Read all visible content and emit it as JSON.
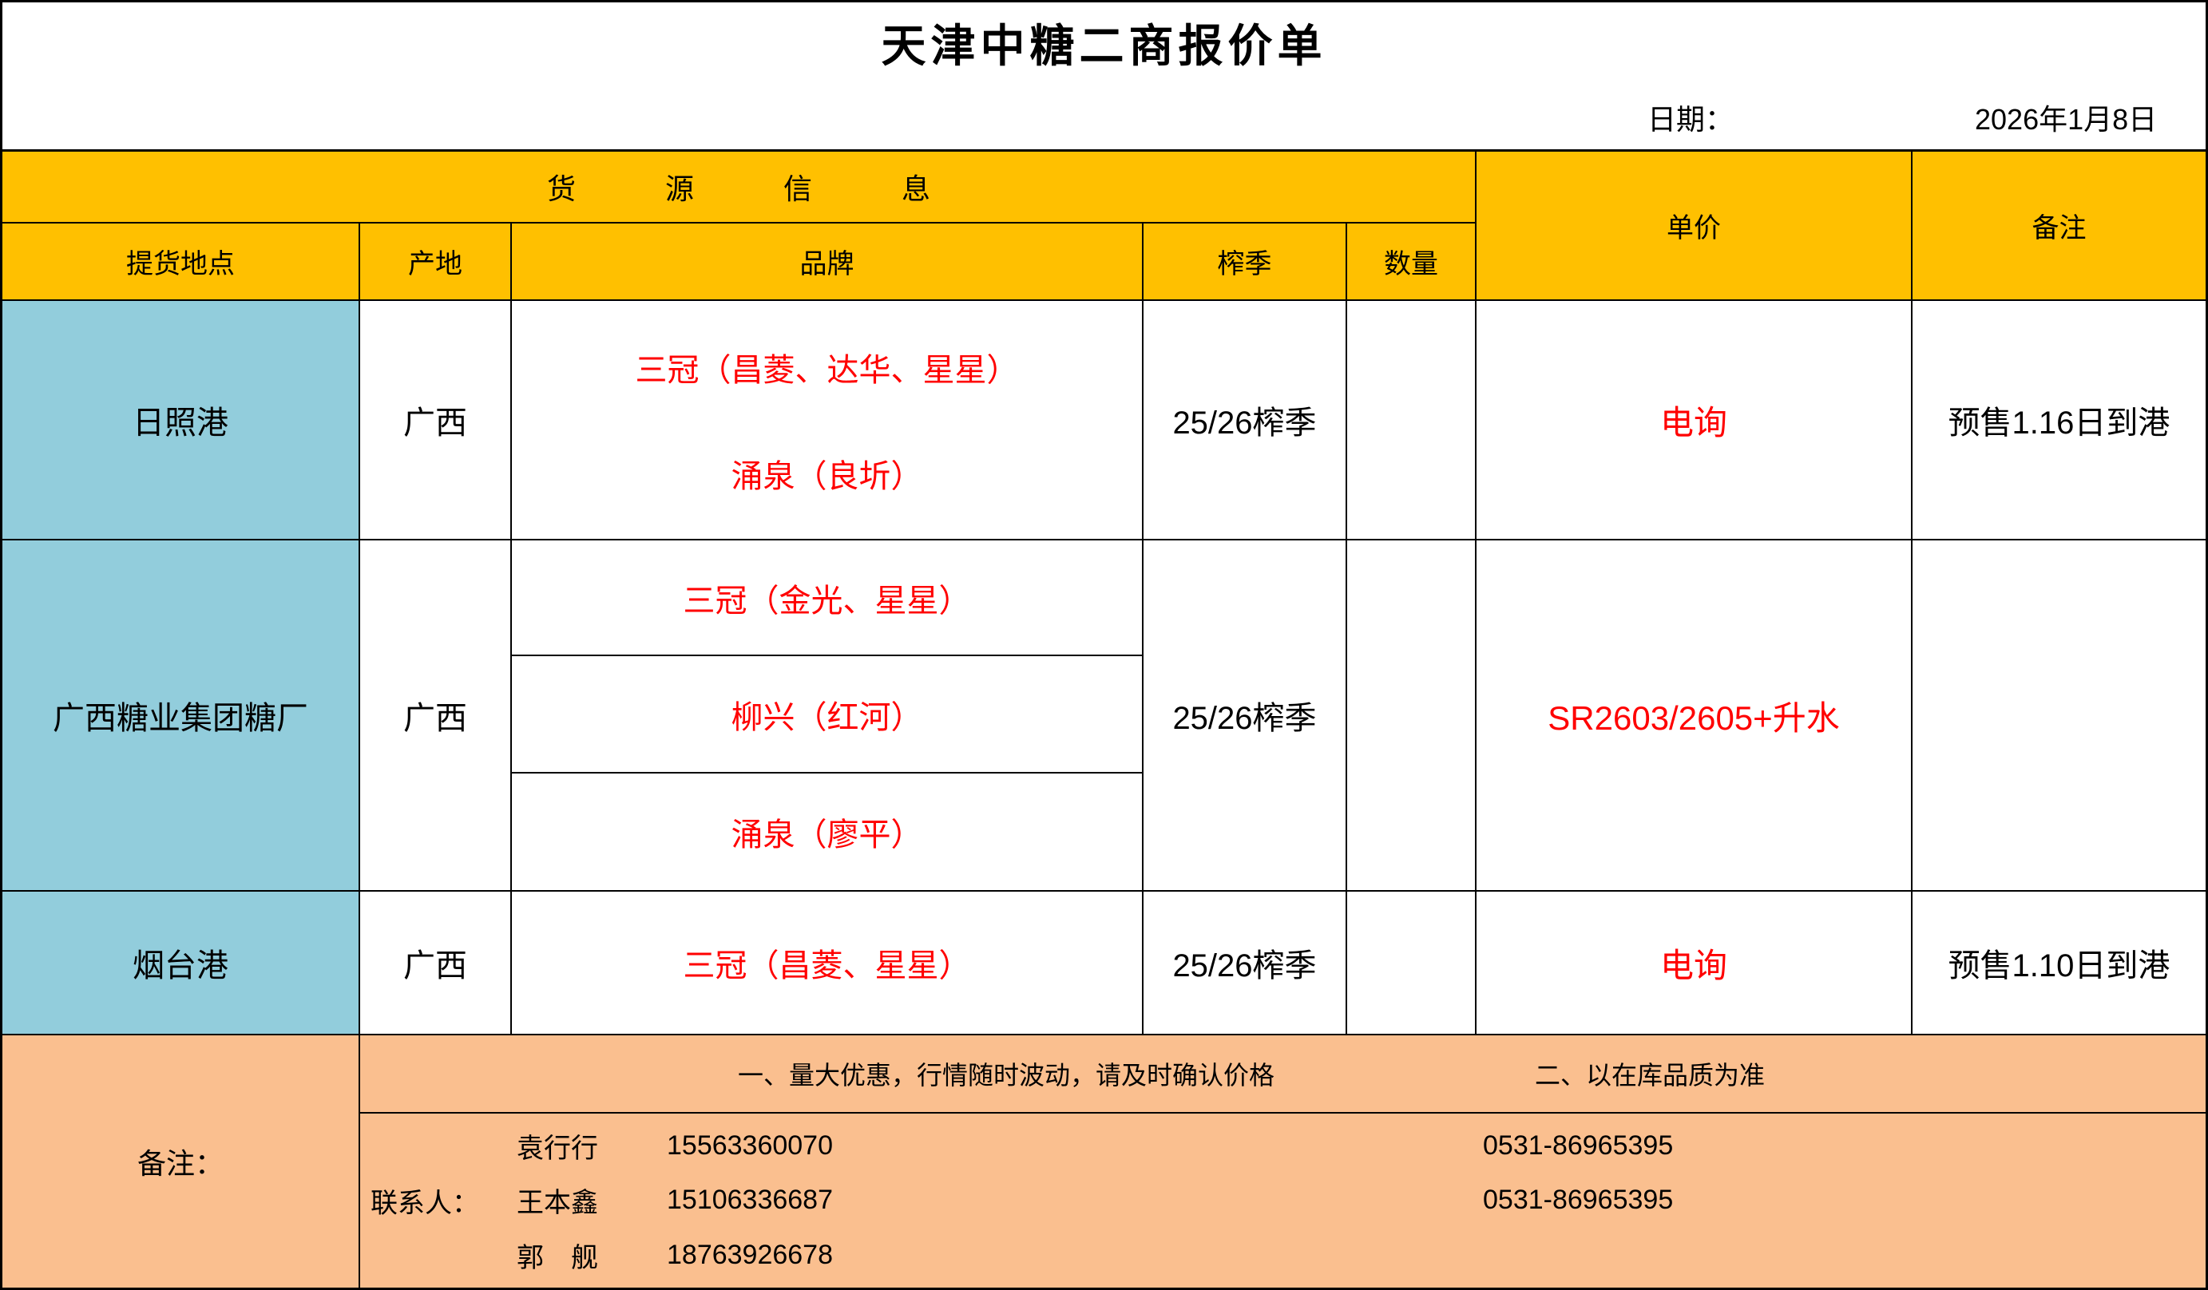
{
  "title": "天津中糖二商报价单",
  "date": {
    "label": "日期：",
    "value": "2026年1月8日"
  },
  "colors": {
    "header_bg": "#FFC000",
    "location_bg": "#92CDDC",
    "footer_bg": "#FABF8F",
    "accent_red": "#FF0000",
    "border": "#000000"
  },
  "table": {
    "group_header": "货源信息",
    "headers": {
      "pickup": "提货地点",
      "origin": "产地",
      "brand": "品牌",
      "season": "榨季",
      "quantity": "数量",
      "price": "单价",
      "note": "备注"
    },
    "rows": [
      {
        "pickup": "日照港",
        "origin": "广西",
        "brands": [
          "三冠（昌菱、达华、星星）",
          "涌泉（良圻）"
        ],
        "season": "25/26榨季",
        "quantity": "",
        "price": "电询",
        "note": "预售1.16日到港"
      },
      {
        "pickup": "广西糖业集团糖厂",
        "origin": "广西",
        "brands": [
          "三冠（金光、星星）",
          "柳兴（红河）",
          "涌泉（廖平）"
        ],
        "season": "25/26榨季",
        "quantity": "",
        "price": "SR2603/2605+升水",
        "note": ""
      },
      {
        "pickup": "烟台港",
        "origin": "广西",
        "brands": [
          "三冠（昌菱、星星）"
        ],
        "season": "25/26榨季",
        "quantity": "",
        "price": "电询",
        "note": "预售1.10日到港"
      }
    ]
  },
  "footer": {
    "label": "备注：",
    "notes": [
      "一、量大优惠，行情随时波动，请及时确认价格",
      "二、以在库品质为准"
    ],
    "contact_label": "联系人：",
    "contacts": [
      {
        "name": "袁行行",
        "mobile": "15563360070",
        "office": "0531-86965395"
      },
      {
        "name": "王本鑫",
        "mobile": "15106336687",
        "office": "0531-86965395"
      },
      {
        "name": "郭　舰",
        "mobile": "18763926678",
        "office": ""
      }
    ]
  }
}
